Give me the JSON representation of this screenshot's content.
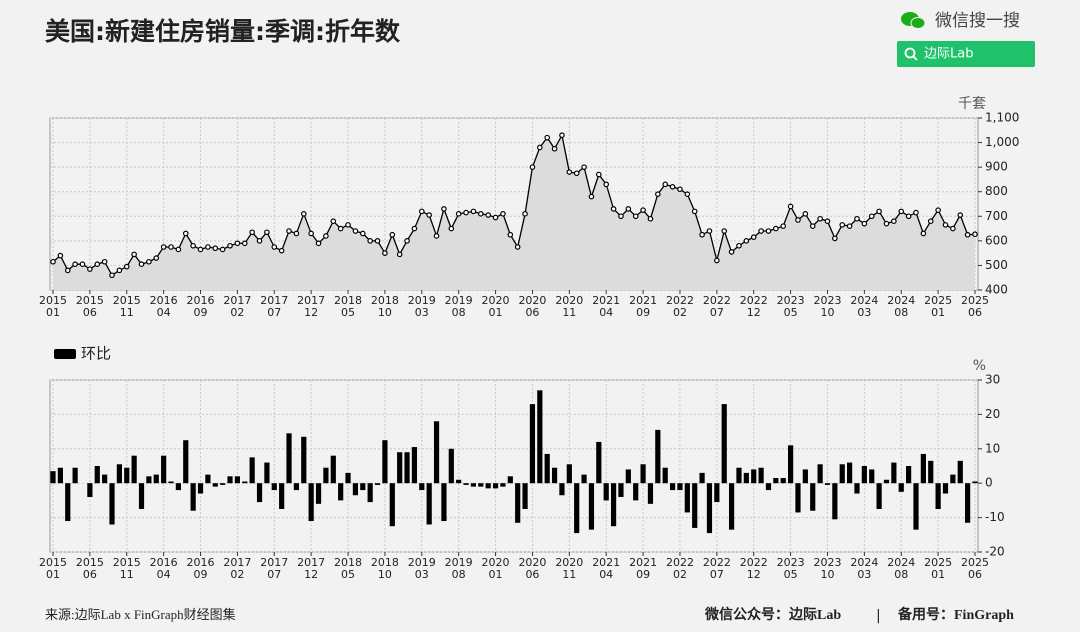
{
  "chart_data": [
    {
      "type": "line",
      "title": "美国:新建住房销量:季调:折年数",
      "ylabel": "千套",
      "categories": [
        "2015\n01",
        null,
        null,
        null,
        null,
        "2015\n06",
        null,
        null,
        null,
        null,
        "2015\n11",
        null,
        null,
        null,
        null,
        "2016\n04",
        null,
        null,
        null,
        null,
        "2016\n09",
        null,
        null,
        null,
        null,
        "2017\n02",
        null,
        null,
        null,
        null,
        "2017\n07",
        null,
        null,
        null,
        null,
        "2017\n12",
        null,
        null,
        null,
        null,
        "2018\n05",
        null,
        null,
        null,
        null,
        "2018\n10",
        null,
        null,
        null,
        null,
        "2019\n03",
        null,
        null,
        null,
        null,
        "2019\n08",
        null,
        null,
        null,
        null,
        "2020\n01",
        null,
        null,
        null,
        null,
        "2020\n06",
        null,
        null,
        null,
        null,
        "2020\n11",
        null,
        null,
        null,
        null,
        "2021\n04",
        null,
        null,
        null,
        null,
        "2021\n09",
        null,
        null,
        null,
        null,
        "2022\n02",
        null,
        null,
        null,
        null,
        "2022\n07",
        null,
        null,
        null,
        null,
        "2022\n12",
        null,
        null,
        null,
        null,
        "2023\n05",
        null,
        null,
        null,
        null,
        "2023\n10",
        null,
        null,
        null,
        null,
        "2024\n03",
        null,
        null,
        null,
        null,
        "2024\n08",
        null,
        null,
        null,
        null,
        "2025\n01",
        null,
        null,
        null,
        null,
        "2025\n06"
      ],
      "series": [
        {
          "color": "#000000",
          "area_color": "#dcdcdc",
          "values": [
            515,
            540,
            480,
            505,
            505,
            485,
            505,
            515,
            460,
            480,
            495,
            545,
            505,
            515,
            530,
            575,
            575,
            565,
            630,
            580,
            565,
            575,
            570,
            565,
            580,
            590,
            590,
            635,
            600,
            635,
            575,
            560,
            640,
            630,
            710,
            630,
            590,
            620,
            680,
            650,
            665,
            640,
            630,
            600,
            600,
            550,
            625,
            545,
            600,
            650,
            720,
            705,
            620,
            730,
            650,
            710,
            715,
            720,
            710,
            705,
            695,
            710,
            625,
            575,
            710,
            900,
            980,
            1020,
            975,
            1030,
            880,
            875,
            900,
            780,
            870,
            830,
            730,
            700,
            730,
            700,
            725,
            690,
            790,
            830,
            820,
            810,
            790,
            720,
            625,
            640,
            520,
            640,
            555,
            580,
            600,
            615,
            640,
            640,
            650,
            660,
            740,
            685,
            710,
            660,
            690,
            680,
            610,
            665,
            660,
            690,
            670,
            700,
            720,
            670,
            680,
            720,
            700,
            715,
            630,
            680,
            725,
            665,
            650,
            705,
            625,
            627
          ]
        }
      ],
      "ylim": [
        400,
        1100
      ],
      "yticks": [
        400,
        500,
        600,
        700,
        800,
        900,
        {
          "value": 1000,
          "label": "1,000"
        },
        {
          "value": 1100,
          "label": "1,100"
        }
      ],
      "grid": true
    },
    {
      "type": "bar",
      "ylabel": "%",
      "categories": [
        "2015\n01",
        null,
        null,
        null,
        null,
        "2015\n06",
        null,
        null,
        null,
        null,
        "2015\n11",
        null,
        null,
        null,
        null,
        "2016\n04",
        null,
        null,
        null,
        null,
        "2016\n09",
        null,
        null,
        null,
        null,
        "2017\n02",
        null,
        null,
        null,
        null,
        "2017\n07",
        null,
        null,
        null,
        null,
        "2017\n12",
        null,
        null,
        null,
        null,
        "2018\n05",
        null,
        null,
        null,
        null,
        "2018\n10",
        null,
        null,
        null,
        null,
        "2019\n03",
        null,
        null,
        null,
        null,
        "2019\n08",
        null,
        null,
        null,
        null,
        "2020\n01",
        null,
        null,
        null,
        null,
        "2020\n06",
        null,
        null,
        null,
        null,
        "2020\n11",
        null,
        null,
        null,
        null,
        "2021\n04",
        null,
        null,
        null,
        null,
        "2021\n09",
        null,
        null,
        null,
        null,
        "2022\n02",
        null,
        null,
        null,
        null,
        "2022\n07",
        null,
        null,
        null,
        null,
        "2022\n12",
        null,
        null,
        null,
        null,
        "2023\n05",
        null,
        null,
        null,
        null,
        "2023\n10",
        null,
        null,
        null,
        null,
        "2024\n03",
        null,
        null,
        null,
        null,
        "2024\n08",
        null,
        null,
        null,
        null,
        "2025\n01",
        null,
        null,
        null,
        null,
        "2025\n06"
      ],
      "series": [
        {
          "name": "环比",
          "color": "#000000",
          "values": [
            3.5,
            4.5,
            -11,
            4.5,
            0,
            -4,
            5,
            2.5,
            -12,
            5.5,
            4.5,
            8,
            -7.5,
            2,
            2.5,
            8,
            0.5,
            -2,
            12.5,
            -8,
            -3,
            2.5,
            -1,
            -0.5,
            2,
            2,
            0.5,
            7.5,
            -5.5,
            6,
            -2,
            -7.5,
            14.5,
            -2,
            13.5,
            -11,
            -6,
            4.5,
            8,
            -5,
            3,
            -3.5,
            -2,
            -5.5,
            -0.5,
            12.5,
            -12.5,
            9,
            9,
            10.5,
            -2,
            -12,
            18,
            -11,
            10,
            1,
            -0.5,
            -1,
            -1,
            -1.5,
            -1.5,
            -1,
            2,
            -11.5,
            -7.5,
            23,
            27,
            8.5,
            4.5,
            -3.5,
            5.5,
            -14.5,
            2.5,
            -13.5,
            12,
            -5,
            -12.5,
            -4,
            4,
            -5,
            5.5,
            -6,
            15.5,
            4.5,
            -2,
            -2,
            -8.5,
            -13,
            3,
            -14.5,
            -5.5,
            23,
            -13.5,
            4.5,
            3,
            4,
            4.5,
            -2,
            1.5,
            1.5,
            11,
            -8.5,
            4,
            -8,
            5.5,
            -0.5,
            -10.5,
            5.5,
            6,
            -3,
            5,
            4,
            -7.5,
            1,
            6,
            -2.5,
            5,
            -13.5,
            8.5,
            6.5,
            -7.5,
            -3,
            2.5,
            6.5,
            -11.5,
            0.5
          ]
        }
      ],
      "ylim": [
        -20,
        30
      ],
      "yticks": [
        -20,
        -10,
        0,
        10,
        20,
        30
      ],
      "grid": true,
      "legend": "top-left"
    }
  ],
  "page": {
    "brand": "微信搜一搜",
    "search": "边际Lab",
    "source": "来源:边际Lab x FinGraph财经图集",
    "footer_left": "微信公众号：边际Lab",
    "separator": "|",
    "footer_right": "备用号：FinGraph"
  }
}
